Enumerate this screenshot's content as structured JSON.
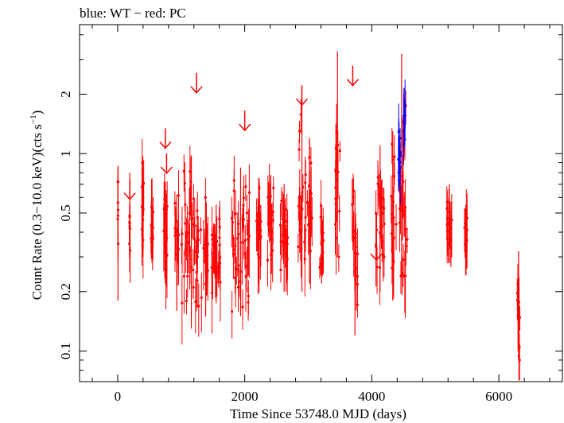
{
  "chart_data": {
    "type": "scatter",
    "title": "blue: WT − red: PC",
    "xlabel": "Time Since 53748.0 MJD (days)",
    "ylabel": "Count Rate (0.3−10.0 keV)(cts s",
    "ylabel_sup": "−1",
    "ylabel_end": ")",
    "xlim": [
      -600,
      7000
    ],
    "ylim": [
      0.07,
      4.5
    ],
    "yscale": "log",
    "xticks": [
      0,
      2000,
      4000,
      6000
    ],
    "xtick_labels": [
      "0",
      "2000",
      "4000",
      "6000"
    ],
    "yticks": [
      0.1,
      0.2,
      0.5,
      1,
      2
    ],
    "ytick_labels": [
      "0.1",
      "0.2",
      "0.5",
      "1",
      "2"
    ],
    "grid": false,
    "legend": "none",
    "colors": {
      "PC": "#ff0000",
      "WT": "#0000ff"
    },
    "series": [
      {
        "name": "PC",
        "mode": "points-with-errorbars",
        "clusters": [
          {
            "x": [
              0,
              10
            ],
            "y": [
              0.18,
              0.72
            ],
            "center": 0.5
          },
          {
            "x": [
              180,
              200
            ],
            "y": [
              0.25,
              0.8
            ],
            "center": 0.45
          },
          {
            "x": [
              370,
              420
            ],
            "y": [
              0.3,
              0.9
            ],
            "center": 0.55
          },
          {
            "x": [
              520,
              560
            ],
            "y": [
              0.28,
              0.75
            ],
            "center": 0.45
          },
          {
            "x": [
              720,
              780
            ],
            "y": [
              0.22,
              0.72
            ],
            "center": 0.42
          },
          {
            "x": [
              900,
              960
            ],
            "y": [
              0.16,
              0.62
            ],
            "center": 0.35
          },
          {
            "x": [
              1000,
              1320
            ],
            "y": [
              0.13,
              0.98
            ],
            "center": 0.38
          },
          {
            "x": [
              1350,
              1420
            ],
            "y": [
              0.15,
              0.6
            ],
            "center": 0.32
          },
          {
            "x": [
              1480,
              1620
            ],
            "y": [
              0.18,
              0.55
            ],
            "center": 0.32
          },
          {
            "x": [
              1790,
              2080
            ],
            "y": [
              0.15,
              0.85
            ],
            "center": 0.38
          },
          {
            "x": [
              2180,
              2260
            ],
            "y": [
              0.22,
              0.75
            ],
            "center": 0.45
          },
          {
            "x": [
              2360,
              2460
            ],
            "y": [
              0.25,
              0.78
            ],
            "center": 0.45
          },
          {
            "x": [
              2560,
              2680
            ],
            "y": [
              0.2,
              0.7
            ],
            "center": 0.4
          },
          {
            "x": [
              2840,
              2960
            ],
            "y": [
              0.2,
              1.8
            ],
            "center": 0.55
          },
          {
            "x": [
              2980,
              3060
            ],
            "y": [
              0.22,
              1.2
            ],
            "center": 0.5
          },
          {
            "x": [
              3180,
              3240
            ],
            "y": [
              0.22,
              0.55
            ],
            "center": 0.35
          },
          {
            "x": [
              3420,
              3500
            ],
            "y": [
              0.3,
              3.3
            ],
            "center": 0.8
          },
          {
            "x": [
              3690,
              3780
            ],
            "y": [
              0.12,
              0.65
            ],
            "center": 0.35
          },
          {
            "x": [
              4060,
              4200
            ],
            "y": [
              0.2,
              1.1
            ],
            "center": 0.5
          },
          {
            "x": [
              4300,
              4360
            ],
            "y": [
              0.18,
              1.3
            ],
            "center": 0.45
          },
          {
            "x": [
              4380,
              4560
            ],
            "y": [
              0.24,
              3.2
            ],
            "center": 0.55
          },
          {
            "x": [
              5180,
              5260
            ],
            "y": [
              0.28,
              0.7
            ],
            "center": 0.45
          },
          {
            "x": [
              5460,
              5500
            ],
            "y": [
              0.26,
              0.55
            ],
            "center": 0.38
          },
          {
            "x": [
              6290,
              6330
            ],
            "y": [
              0.09,
              0.32
            ],
            "center": 0.15
          }
        ]
      },
      {
        "name": "WT",
        "mode": "points-with-errorbars",
        "clusters": [
          {
            "x": [
              4400,
              4450
            ],
            "y": [
              0.7,
              1.5
            ],
            "center": 1.0
          },
          {
            "x": [
              4500,
              4530
            ],
            "y": [
              1.2,
              1.8
            ],
            "center": 1.55
          }
        ]
      }
    ],
    "upper_limits": {
      "name": "PC upper limits",
      "points": [
        {
          "x": 190,
          "y": 0.65
        },
        {
          "x": 750,
          "y": 1.18
        },
        {
          "x": 770,
          "y": 0.88
        },
        {
          "x": 1240,
          "y": 2.25
        },
        {
          "x": 2000,
          "y": 1.45
        },
        {
          "x": 2900,
          "y": 1.95
        },
        {
          "x": 3700,
          "y": 2.45
        },
        {
          "x": 4070,
          "y": 0.32
        }
      ]
    }
  }
}
